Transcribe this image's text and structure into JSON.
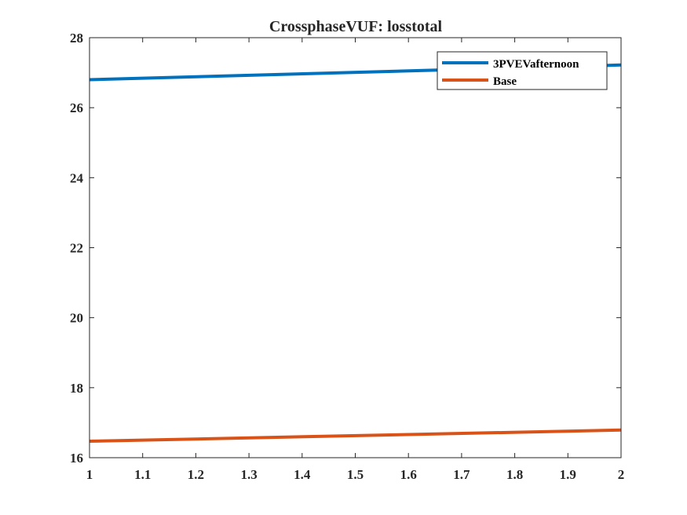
{
  "chart_data": {
    "type": "line",
    "title": "CrossphaseVUF: losstotal",
    "xlabel": "",
    "ylabel": "",
    "xlim": [
      1,
      2
    ],
    "ylim": [
      16,
      28
    ],
    "x_ticks": [
      "1",
      "1.1",
      "1.2",
      "1.3",
      "1.4",
      "1.5",
      "1.6",
      "1.7",
      "1.8",
      "1.9",
      "2"
    ],
    "y_ticks": [
      "16",
      "18",
      "20",
      "22",
      "24",
      "26",
      "28"
    ],
    "grid": false,
    "legend_position": "top-right",
    "series": [
      {
        "name": "3PVEVafternoon",
        "color": "#0072BD",
        "x": [
          1,
          2
        ],
        "values": [
          26.8,
          27.22
        ]
      },
      {
        "name": "Base",
        "color": "#D95319",
        "x": [
          1,
          2
        ],
        "values": [
          16.47,
          16.79
        ]
      }
    ]
  }
}
